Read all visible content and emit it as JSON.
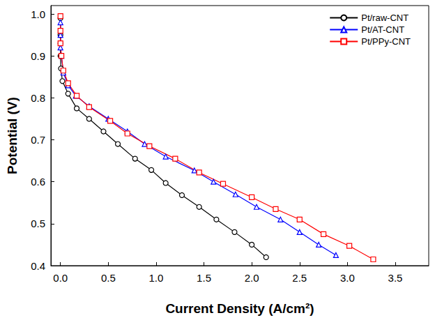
{
  "chart_data": {
    "type": "line",
    "x_label": "Current Density (A/cm²)",
    "y_label": "Potential (V)",
    "xlim": [
      -0.1,
      3.85
    ],
    "ylim": [
      0.4,
      1.02
    ],
    "xticks": [
      {
        "value": 0,
        "label": "0.0"
      },
      0.5,
      {
        "value": 1,
        "label": "1.0"
      },
      1.5,
      {
        "value": 2,
        "label": "2.0"
      },
      2.5,
      {
        "value": 3,
        "label": "3.0"
      },
      3.5
    ],
    "yticks": [
      0.4,
      0.5,
      0.6,
      0.7,
      0.8,
      0.9,
      {
        "value": 1,
        "label": "1.0"
      }
    ],
    "grid": false,
    "legend": "upper right",
    "series": [
      {
        "name": "Pt/raw-CNT",
        "color": "#000000",
        "marker": "circle",
        "x": [
          0,
          0,
          0,
          0,
          0.005,
          0.02,
          0.08,
          0.17,
          0.3,
          0.45,
          0.6,
          0.78,
          0.95,
          1.1,
          1.27,
          1.45,
          1.63,
          1.82,
          2.0,
          2.15
        ],
        "values": [
          0.99,
          0.95,
          0.93,
          0.9,
          0.87,
          0.84,
          0.81,
          0.775,
          0.75,
          0.72,
          0.69,
          0.655,
          0.628,
          0.597,
          0.568,
          0.54,
          0.51,
          0.48,
          0.45,
          0.42
        ]
      },
      {
        "name": "Pt/AT-CNT",
        "color": "#0000ff",
        "marker": "triangle",
        "x": [
          0,
          0,
          0,
          0.01,
          0.03,
          0.08,
          0.16,
          0.3,
          0.5,
          0.7,
          0.88,
          1.1,
          1.4,
          1.6,
          1.83,
          2.05,
          2.3,
          2.5,
          2.7,
          2.88
        ],
        "values": [
          0.98,
          0.95,
          0.92,
          0.9,
          0.86,
          0.83,
          0.805,
          0.78,
          0.75,
          0.72,
          0.69,
          0.66,
          0.627,
          0.6,
          0.57,
          0.54,
          0.51,
          0.48,
          0.45,
          0.425
        ]
      },
      {
        "name": "Pt/PPy-CNT",
        "color": "#ff0000",
        "marker": "rect",
        "x": [
          0,
          0,
          0,
          0.01,
          0.03,
          0.08,
          0.17,
          0.3,
          0.52,
          0.7,
          0.93,
          1.2,
          1.45,
          1.7,
          2.0,
          2.25,
          2.5,
          2.75,
          3.02,
          3.27
        ],
        "values": [
          0.995,
          0.96,
          0.93,
          0.9,
          0.865,
          0.835,
          0.805,
          0.778,
          0.745,
          0.715,
          0.685,
          0.655,
          0.622,
          0.595,
          0.563,
          0.535,
          0.51,
          0.475,
          0.447,
          0.415
        ]
      }
    ]
  }
}
